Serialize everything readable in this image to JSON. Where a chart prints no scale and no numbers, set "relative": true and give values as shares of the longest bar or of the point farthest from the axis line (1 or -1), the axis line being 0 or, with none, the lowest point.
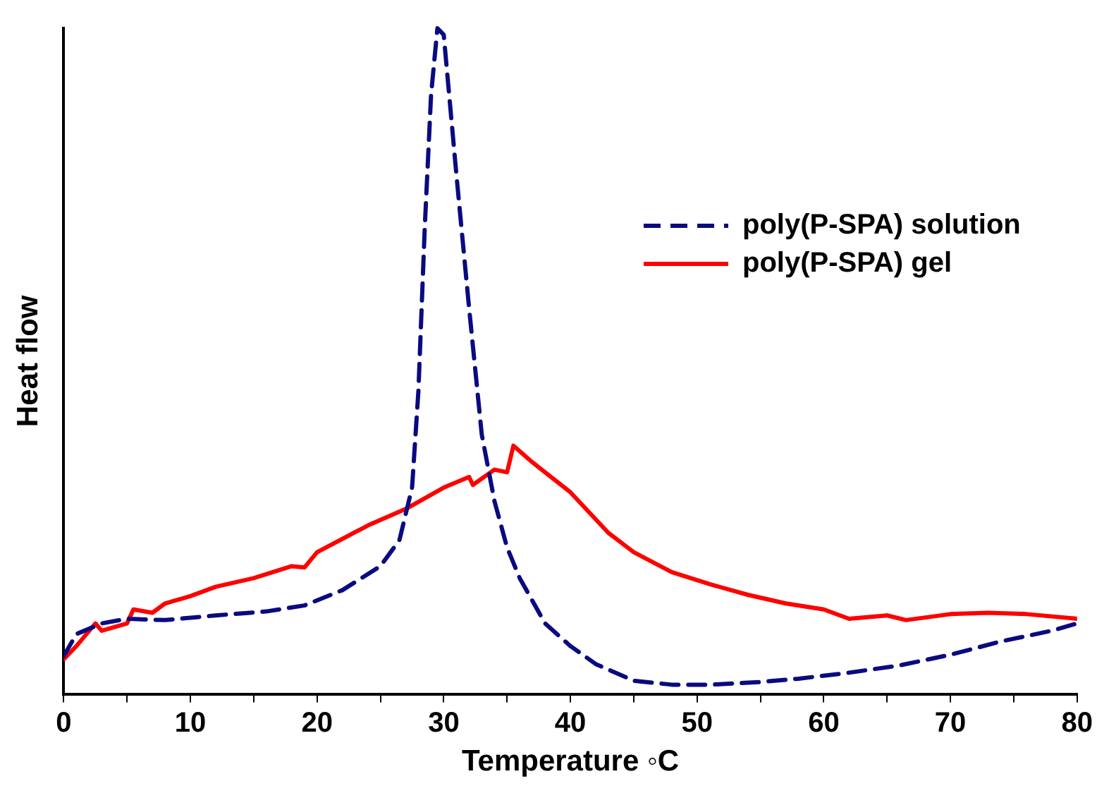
{
  "chart_data": {
    "type": "line",
    "relative": true,
    "xlabel": "Temperature ◦C",
    "ylabel": "Heat flow",
    "xlim": [
      0,
      80
    ],
    "xticks": [
      0,
      {
        "value": 5,
        "label": null
      },
      10,
      {
        "value": 15,
        "label": null
      },
      20,
      {
        "value": 25,
        "label": null
      },
      30,
      {
        "value": 35,
        "label": null
      },
      40,
      {
        "value": 45,
        "label": null
      },
      50,
      {
        "value": 55,
        "label": null
      },
      60,
      {
        "value": 65,
        "label": null
      },
      70,
      {
        "value": 75,
        "label": null
      },
      80
    ],
    "grid": false,
    "legend": "top right",
    "marker": "none",
    "series": [
      {
        "name": "poly(P-SPA) solution",
        "color": "#0a0a80",
        "line_style": "dashed",
        "x": [
          0,
          1,
          3,
          5,
          8,
          12,
          16,
          19,
          22,
          25,
          26.5,
          27.5,
          28,
          28.5,
          29,
          29.5,
          30,
          31,
          32,
          33,
          34,
          35,
          36,
          38,
          40,
          42,
          45,
          48,
          51,
          55,
          58,
          62,
          66,
          70,
          74,
          78,
          80
        ],
        "values": [
          0.057,
          0.09,
          0.106,
          0.113,
          0.111,
          0.118,
          0.124,
          0.133,
          0.156,
          0.192,
          0.231,
          0.31,
          0.455,
          0.7,
          0.9,
          1.0,
          0.99,
          0.78,
          0.58,
          0.39,
          0.29,
          0.22,
          0.174,
          0.106,
          0.072,
          0.045,
          0.02,
          0.014,
          0.014,
          0.018,
          0.023,
          0.032,
          0.043,
          0.059,
          0.079,
          0.095,
          0.106
        ]
      },
      {
        "name": "poly(P-SPA) gel",
        "color": "#ff0000",
        "line_style": "solid",
        "x": [
          0,
          1,
          2.5,
          3,
          5,
          5.5,
          7,
          8,
          10,
          12,
          15,
          18,
          19,
          20,
          24,
          27,
          30,
          32,
          32.3,
          34,
          35,
          35.5,
          37,
          40,
          43,
          45,
          48,
          51,
          54,
          57,
          60,
          62,
          65,
          66.5,
          70,
          73,
          76,
          80
        ],
        "values": [
          0.052,
          0.072,
          0.106,
          0.095,
          0.106,
          0.127,
          0.122,
          0.136,
          0.147,
          0.161,
          0.174,
          0.192,
          0.19,
          0.213,
          0.253,
          0.278,
          0.31,
          0.326,
          0.314,
          0.337,
          0.333,
          0.373,
          0.348,
          0.303,
          0.242,
          0.213,
          0.183,
          0.165,
          0.149,
          0.136,
          0.127,
          0.113,
          0.118,
          0.111,
          0.12,
          0.122,
          0.12,
          0.113
        ]
      }
    ]
  }
}
